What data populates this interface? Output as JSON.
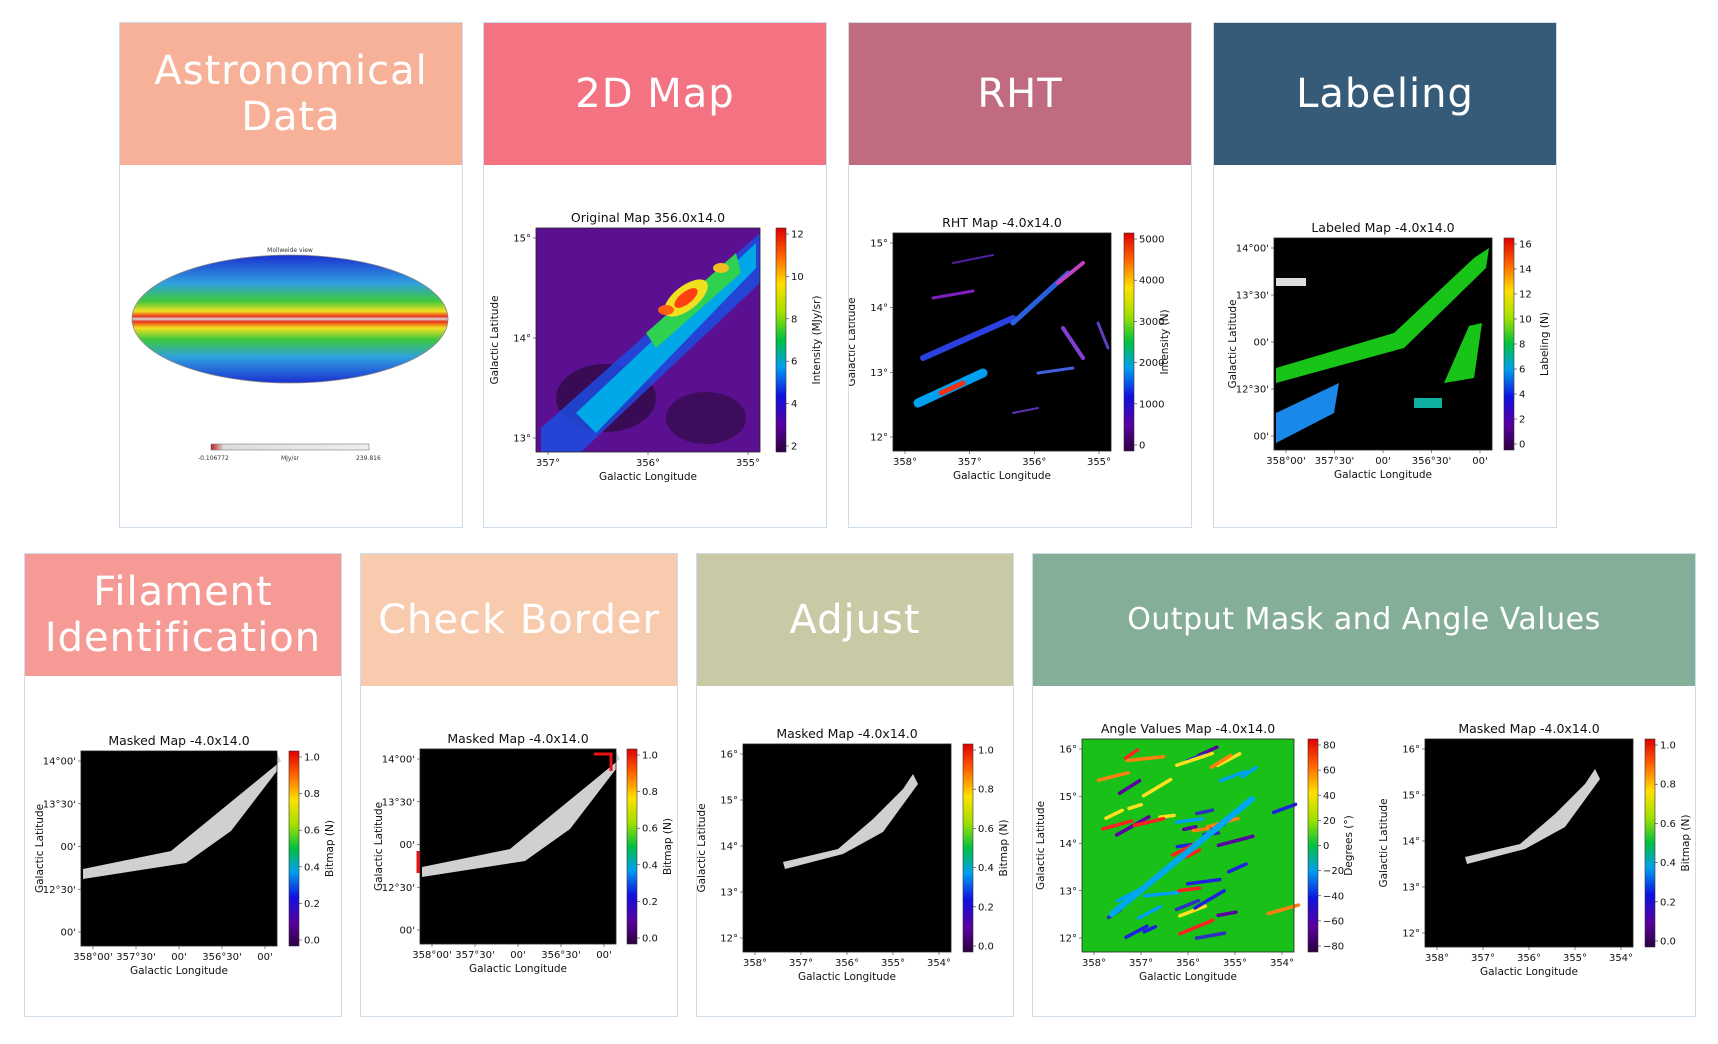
{
  "cards": [
    {
      "id": "astronomical-data",
      "title_line1": "Astronomical",
      "title_line2": "Data",
      "header_color": "#f7b198",
      "figure": {
        "title": "Mollweide view",
        "cbar_min": "-0.106772",
        "cbar_unit": "MJy/sr",
        "cbar_max": "239.816"
      }
    },
    {
      "id": "2d-map",
      "title_line1": "2D Map",
      "header_color": "#f47383",
      "figure": {
        "title": "Original Map 356.0x14.0",
        "xlabel": "Galactic Longitude",
        "ylabel": "Galactic Latitude",
        "xticks": [
          "357°",
          "356°",
          "355°"
        ],
        "yticks": [
          "15°",
          "14°",
          "13°"
        ],
        "cbar_label": "Intensity (MJy/sr)",
        "cbar_ticks": [
          "12",
          "10",
          "8",
          "6",
          "4",
          "2"
        ]
      }
    },
    {
      "id": "rht",
      "title_line1": "RHT",
      "header_color": "#c06b80",
      "figure": {
        "title": "RHT Map -4.0x14.0",
        "xlabel": "Galactic Longitude",
        "ylabel": "Galactic Latitude",
        "xticks": [
          "358°",
          "357°",
          "356°",
          "355°"
        ],
        "yticks": [
          "15°",
          "14°",
          "13°",
          "12°"
        ],
        "cbar_label": "Intensity (N)",
        "cbar_ticks": [
          "5000",
          "4000",
          "3000",
          "2000",
          "1000",
          "0"
        ]
      }
    },
    {
      "id": "labeling",
      "title_line1": "Labeling",
      "header_color": "#355b78",
      "figure": {
        "title": "Labeled Map -4.0x14.0",
        "xlabel": "Galactic Longitude",
        "ylabel": "Galactic Latitude",
        "xticks": [
          "358°00'",
          "357°30'",
          "00'",
          "356°30'",
          "00'"
        ],
        "yticks": [
          "14°00'",
          "13°30'",
          "00'",
          "12°30'",
          "00'"
        ],
        "cbar_label": "Labeling (N)",
        "cbar_ticks": [
          "16",
          "14",
          "12",
          "10",
          "8",
          "6",
          "4",
          "2",
          "0"
        ]
      }
    },
    {
      "id": "filament-identification",
      "title_line1": "Filament",
      "title_line2": "Identification",
      "header_color": "#f69a96",
      "figure": {
        "title": "Masked Map -4.0x14.0",
        "xlabel": "Galactic Longitude",
        "ylabel": "Galactic Latitude",
        "xticks": [
          "358°00'",
          "357°30'",
          "00'",
          "356°30'",
          "00'"
        ],
        "yticks": [
          "14°00'",
          "13°30'",
          "00'",
          "12°30'",
          "00'"
        ],
        "cbar_label": "Bitmap (N)",
        "cbar_ticks": [
          "1.0",
          "0.8",
          "0.6",
          "0.4",
          "0.2",
          "0.0"
        ]
      }
    },
    {
      "id": "check-border",
      "title_line1": "Check Border",
      "header_color": "#f8cbae",
      "figure": {
        "title": "Masked Map -4.0x14.0",
        "xlabel": "Galactic Longitude",
        "ylabel": "Galactic Latitude",
        "xticks": [
          "358°00'",
          "357°30'",
          "00'",
          "356°30'",
          "00'"
        ],
        "yticks": [
          "14°00'",
          "13°30'",
          "00'",
          "12°30'",
          "00'"
        ],
        "cbar_label": "Bitmap (N)",
        "cbar_ticks": [
          "1.0",
          "0.8",
          "0.6",
          "0.4",
          "0.2",
          "0.0"
        ]
      }
    },
    {
      "id": "adjust",
      "title_line1": "Adjust",
      "header_color": "#c9c9a6",
      "figure": {
        "title": "Masked Map -4.0x14.0",
        "xlabel": "Galactic Longitude",
        "ylabel": "Galactic Latitude",
        "xticks": [
          "358°",
          "357°",
          "356°",
          "355°",
          "354°"
        ],
        "yticks": [
          "16°",
          "15°",
          "14°",
          "13°",
          "12°"
        ],
        "cbar_label": "Bitmap (N)",
        "cbar_ticks": [
          "1.0",
          "0.8",
          "0.6",
          "0.4",
          "0.2",
          "0.0"
        ]
      }
    },
    {
      "id": "output",
      "title_line1": "Output Mask and Angle Values",
      "header_color": "#85ae98",
      "figure": {
        "title": "Angle Values Map -4.0x14.0",
        "xlabel": "Galactic Longitude",
        "ylabel": "Galactic Latitude",
        "xticks": [
          "358°",
          "357°",
          "356°",
          "355°",
          "354°"
        ],
        "yticks": [
          "16°",
          "15°",
          "14°",
          "13°",
          "12°"
        ],
        "cbar_label": "Degrees (°)",
        "cbar_ticks": [
          "80",
          "60",
          "40",
          "20",
          "0",
          "−20",
          "−40",
          "−60",
          "−80"
        ]
      },
      "figure2": {
        "title": "Masked Map -4.0x14.0",
        "xlabel": "Galactic Longitude",
        "ylabel": "Galactic Latitude",
        "xticks": [
          "358°",
          "357°",
          "356°",
          "355°",
          "354°"
        ],
        "yticks": [
          "16°",
          "15°",
          "14°",
          "13°",
          "12°"
        ],
        "cbar_label": "Bitmap (N)",
        "cbar_ticks": [
          "1.0",
          "0.8",
          "0.6",
          "0.4",
          "0.2",
          "0.0"
        ]
      }
    }
  ]
}
